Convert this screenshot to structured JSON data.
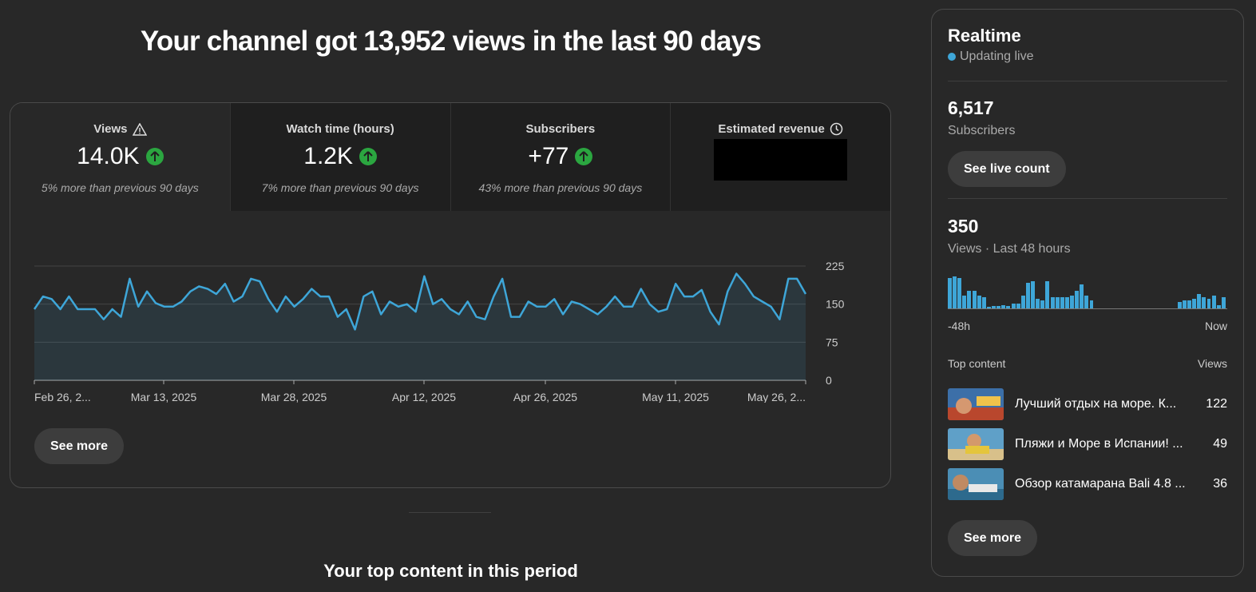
{
  "header": {
    "title": "Your channel got 13,952 views in the last 90 days"
  },
  "metrics": [
    {
      "title": "Views",
      "value": "14.0K",
      "note": "5% more than previous 90 days",
      "icon": "warning-icon",
      "trend": "up"
    },
    {
      "title": "Watch time (hours)",
      "value": "1.2K",
      "note": "7% more than previous 90 days",
      "trend": "up"
    },
    {
      "title": "Subscribers",
      "value": "+77",
      "note": "43% more than previous 90 days",
      "trend": "up"
    },
    {
      "title": "Estimated revenue",
      "icon": "clock-icon",
      "redacted": true
    }
  ],
  "chart_data": {
    "type": "area",
    "color": "#3ea6d8",
    "ylim": [
      0,
      225
    ],
    "yticks": [
      "225",
      "150",
      "75",
      "0"
    ],
    "xticks": [
      "Feb 26, 2...",
      "Mar 13, 2025",
      "Mar 28, 2025",
      "Apr 12, 2025",
      "Apr 26, 2025",
      "May 11, 2025",
      "May 26, 2..."
    ],
    "values": [
      140,
      165,
      160,
      140,
      165,
      140,
      140,
      140,
      120,
      140,
      125,
      200,
      145,
      175,
      152,
      145,
      145,
      155,
      175,
      185,
      180,
      170,
      190,
      155,
      165,
      200,
      195,
      160,
      135,
      165,
      145,
      160,
      180,
      165,
      165,
      125,
      140,
      100,
      165,
      175,
      130,
      155,
      145,
      150,
      135,
      205,
      150,
      160,
      140,
      130,
      155,
      125,
      120,
      165,
      200,
      125,
      125,
      155,
      145,
      145,
      160,
      130,
      155,
      150,
      140,
      130,
      145,
      165,
      145,
      145,
      180,
      150,
      135,
      140,
      190,
      165,
      165,
      178,
      135,
      110,
      175,
      210,
      190,
      165,
      155,
      145,
      120,
      200,
      200,
      170
    ]
  },
  "buttons": {
    "see_more": "See more"
  },
  "subhead": "Your top content in this period",
  "realtime": {
    "title": "Realtime",
    "status": "Updating live",
    "subscribers_value": "6,517",
    "subscribers_label": "Subscribers",
    "live_count_button": "See live count",
    "views_value": "350",
    "views_label": "Views · Last 48 hours",
    "bar_left": "-48h",
    "bar_right": "Now",
    "bars": [
      95,
      100,
      95,
      40,
      55,
      55,
      40,
      35,
      5,
      8,
      8,
      10,
      8,
      15,
      15,
      40,
      80,
      85,
      30,
      25,
      85,
      35,
      35,
      35,
      35,
      40,
      55,
      75,
      40,
      25,
      0,
      0,
      0,
      0,
      0,
      0,
      0,
      0,
      0,
      0,
      0,
      0,
      0,
      0,
      0,
      0,
      0,
      20,
      25,
      25,
      30,
      45,
      35,
      30,
      40,
      10,
      35
    ],
    "top_content_label": "Top content",
    "views_col_label": "Views",
    "items": [
      {
        "title": "Лучший отдых на море. К...",
        "views": "122"
      },
      {
        "title": "Пляжи и Море в Испании! ...",
        "views": "49"
      },
      {
        "title": "Обзор катамарана Bali 4.8 ...",
        "views": "36"
      }
    ],
    "see_more": "See more"
  }
}
